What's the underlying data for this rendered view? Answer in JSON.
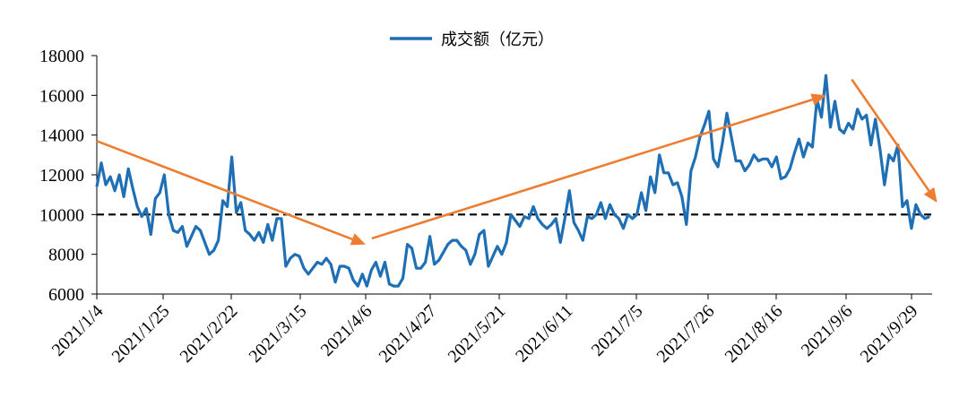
{
  "chart_data": {
    "type": "line",
    "legend": {
      "label": "成交额（亿元）",
      "position": "top"
    },
    "colors": {
      "series": "#1f6fb5",
      "reference": "#000000",
      "trend_arrows": "#ed7d31"
    },
    "ylim": [
      6000,
      18000
    ],
    "yticks": [
      6000,
      8000,
      10000,
      12000,
      14000,
      16000,
      18000
    ],
    "xticks": [
      "2021/1/4",
      "2021/1/25",
      "2021/2/22",
      "2021/3/15",
      "2021/4/6",
      "2021/4/27",
      "2021/5/21",
      "2021/6/11",
      "2021/7/5",
      "2021/7/26",
      "2021/8/16",
      "2021/9/6",
      "2021/9/29"
    ],
    "reference_line": {
      "y": 10000,
      "style": "dashed"
    },
    "series": [
      {
        "name": "成交额（亿元）",
        "values": [
          11400,
          12600,
          11500,
          11900,
          11200,
          12000,
          10900,
          12300,
          11300,
          10400,
          9900,
          10300,
          9000,
          10800,
          11100,
          12000,
          10000,
          9200,
          9100,
          9400,
          8400,
          8900,
          9400,
          9200,
          8600,
          8000,
          8200,
          8700,
          10700,
          10400,
          12900,
          10100,
          10600,
          9200,
          9000,
          8700,
          9100,
          8600,
          9500,
          8700,
          9800,
          9800,
          7400,
          7800,
          8000,
          7900,
          7300,
          7000,
          7300,
          7600,
          7500,
          7800,
          7500,
          6600,
          7400,
          7400,
          7300,
          6700,
          6400,
          7000,
          6400,
          7200,
          7600,
          6900,
          7600,
          6500,
          6400,
          6400,
          6800,
          8500,
          8300,
          7300,
          7300,
          7600,
          8900,
          7500,
          7700,
          8100,
          8500,
          8700,
          8700,
          8400,
          8200,
          7500,
          8000,
          9000,
          9200,
          7400,
          7900,
          8400,
          8000,
          8600,
          10000,
          9700,
          9400,
          9900,
          9800,
          10400,
          9800,
          9500,
          9300,
          9500,
          9800,
          8600,
          9800,
          11200,
          9600,
          9200,
          8700,
          9900,
          9800,
          10000,
          10600,
          9800,
          10500,
          10000,
          9800,
          9300,
          10000,
          9800,
          10000,
          11100,
          10200,
          11900,
          11100,
          13000,
          12100,
          12100,
          11500,
          11600,
          10900,
          9500,
          12200,
          12900,
          13900,
          14500,
          15200,
          12800,
          12400,
          13600,
          15100,
          13900,
          12700,
          12700,
          12200,
          12500,
          13000,
          12700,
          12800,
          12800,
          12400,
          12900,
          11800,
          11900,
          12300,
          13100,
          13800,
          12900,
          13600,
          13400,
          15800,
          14900,
          17000,
          14400,
          15700,
          14300,
          14100,
          14600,
          14300,
          15300,
          14800,
          15000,
          13500,
          14800,
          13300,
          11500,
          13000,
          12700,
          13500,
          10400,
          10700,
          9300,
          10500,
          10000,
          9800,
          9900
        ]
      }
    ],
    "trend_arrows": [
      {
        "from": {
          "x": "2021/1/4",
          "y": 13700
        },
        "to": {
          "x": "2021/4/6",
          "y": 8500
        }
      },
      {
        "from": {
          "x": "2021/4/8",
          "y": 8800
        },
        "to": {
          "x": "2021/8/31",
          "y": 16000
        }
      },
      {
        "from": {
          "x": "2021/9/8",
          "y": 16800
        },
        "to": {
          "x": "2021/10/8",
          "y": 10600
        }
      }
    ]
  }
}
